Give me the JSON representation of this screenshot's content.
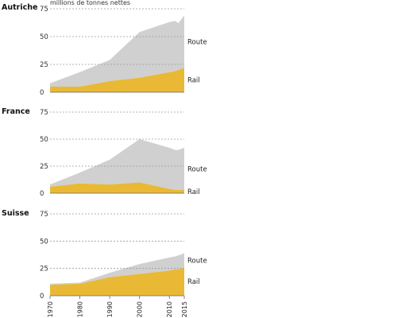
{
  "chart_data": {
    "type": "area",
    "unit_label": "millions de tonnes nettes",
    "x_ticks": [
      1970,
      1980,
      1990,
      2000,
      2010,
      2015
    ],
    "ylim": [
      0,
      75
    ],
    "y_ticks": [
      0,
      25,
      50,
      75
    ],
    "stacked": true,
    "colors": {
      "Route": "#d0d0d0",
      "Rail": "#e9b935",
      "grid": "#9a9a9a",
      "axis": "#666666"
    },
    "panels": [
      {
        "name": "Autriche",
        "x": [
          1970,
          1980,
          1990,
          2000,
          2010,
          2012,
          2013,
          2015
        ],
        "series": [
          {
            "name": "Rail",
            "values": [
              5,
              5,
              10,
              13,
              18,
              19,
              20,
              22
            ]
          },
          {
            "name": "Route",
            "values": [
              3,
              13,
              19,
              41,
              45,
              45,
              42,
              47
            ]
          }
        ]
      },
      {
        "name": "France",
        "x": [
          1970,
          1980,
          1990,
          2000,
          2010,
          2012,
          2013,
          2015
        ],
        "series": [
          {
            "name": "Rail",
            "values": [
              6,
              9,
              8,
              10,
              4,
              3,
              3,
              3
            ]
          },
          {
            "name": "Route",
            "values": [
              2,
              10,
              23,
              40,
              38,
              37,
              37,
              39
            ]
          }
        ]
      },
      {
        "name": "Suisse",
        "x": [
          1970,
          1980,
          1990,
          2000,
          2010,
          2012,
          2013,
          2015
        ],
        "series": [
          {
            "name": "Rail",
            "values": [
              10,
              11,
              17,
              20,
              23,
              24,
              24,
              26
            ]
          },
          {
            "name": "Route",
            "values": [
              1,
              1,
              4,
              9,
              12,
              12,
              13,
              13
            ]
          }
        ]
      }
    ]
  }
}
